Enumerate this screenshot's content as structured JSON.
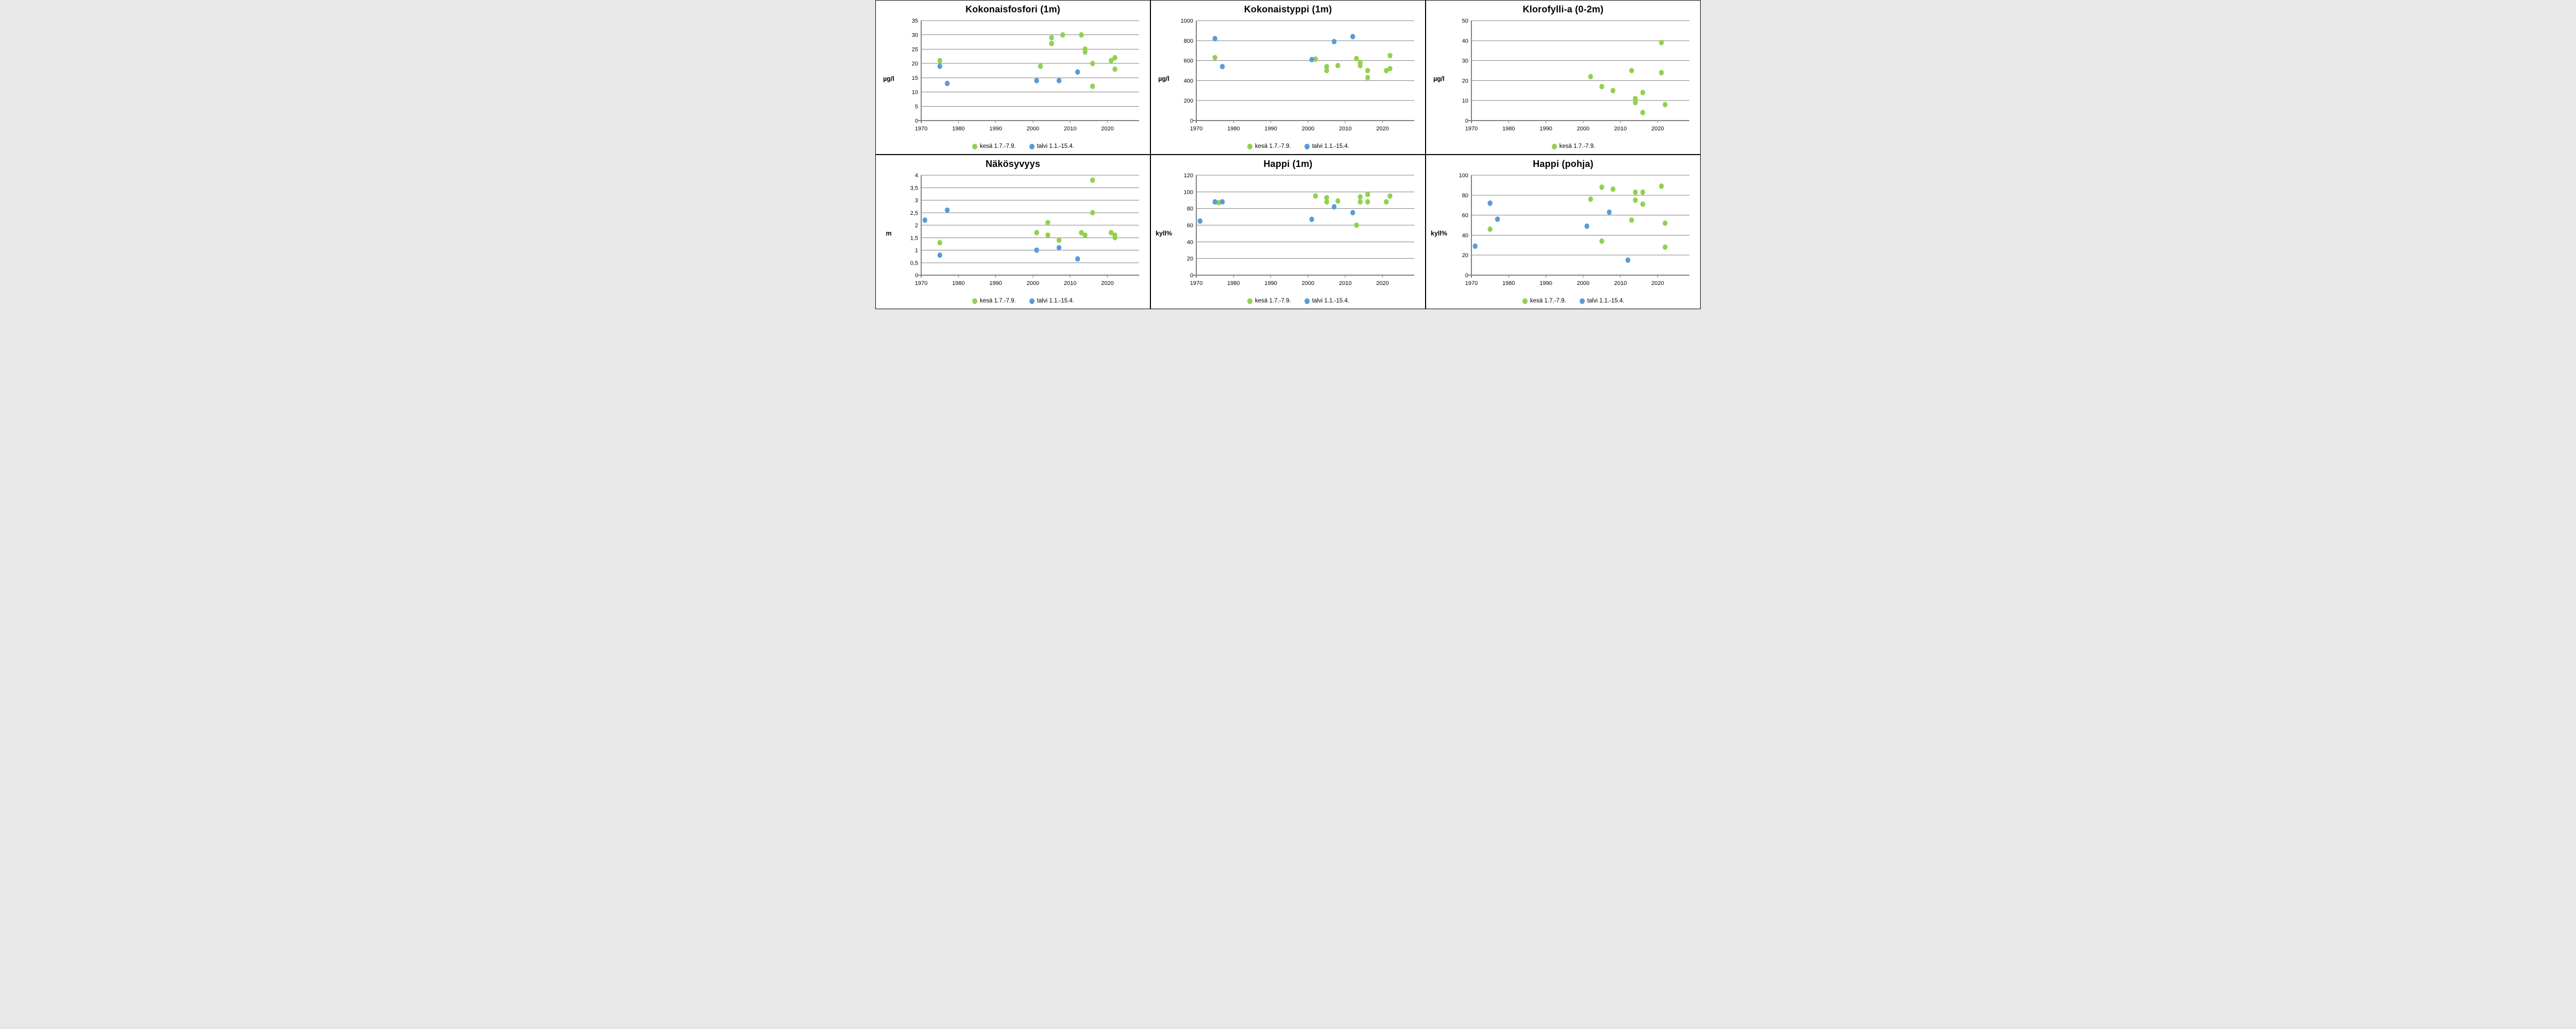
{
  "page": {
    "background": "#ffffff"
  },
  "colors": {
    "kesa": "#92D050",
    "talvi": "#5B9BD5",
    "grid": "#808080",
    "axis": "#808080",
    "text": "#000000",
    "border": "#000000"
  },
  "legend": {
    "kesa_label": "kesä 1.7.-7.9.",
    "talvi_label": "talvi 1.1.-15.4."
  },
  "chart_data": [
    {
      "type": "scatter",
      "title": "Kokonaisfosfori (1m)",
      "ylabel": "µg/l",
      "ylim": [
        0,
        35
      ],
      "yticks": [
        0,
        5,
        10,
        15,
        20,
        25,
        30,
        35
      ],
      "ytick_labels": [
        "0",
        "5",
        "10",
        "15",
        "20",
        "25",
        "30",
        "35"
      ],
      "xlim": [
        1970,
        2028.5
      ],
      "xticks": [
        1970,
        1980,
        1990,
        2000,
        2010,
        2020
      ],
      "xtick_labels": [
        "1970",
        "1980",
        "1990",
        "2000",
        "2010",
        "2020"
      ],
      "grid": true,
      "legend_position": "bottom",
      "series": [
        {
          "id": "kesa",
          "name": "kesä 1.7.-7.9.",
          "color": "#92D050",
          "points": [
            [
              1975,
              21
            ],
            [
              2002,
              19
            ],
            [
              2005,
              29
            ],
            [
              2005,
              27
            ],
            [
              2008,
              30
            ],
            [
              2013,
              30
            ],
            [
              2014,
              25
            ],
            [
              2014,
              24
            ],
            [
              2016,
              20
            ],
            [
              2016,
              12
            ],
            [
              2021,
              21
            ],
            [
              2022,
              22
            ],
            [
              2022,
              18
            ]
          ]
        },
        {
          "id": "talvi",
          "name": "talvi 1.1.-15.4.",
          "color": "#5B9BD5",
          "points": [
            [
              1975,
              19
            ],
            [
              1977,
              13
            ],
            [
              2001,
              14
            ],
            [
              2007,
              14
            ],
            [
              2012,
              17
            ]
          ]
        }
      ]
    },
    {
      "type": "scatter",
      "title": "Kokonaistyppi (1m)",
      "ylabel": "µg/l",
      "ylim": [
        0,
        1000
      ],
      "yticks": [
        0,
        200,
        400,
        600,
        800,
        1000
      ],
      "ytick_labels": [
        "0",
        "200",
        "400",
        "600",
        "800",
        "1000"
      ],
      "xlim": [
        1970,
        2028.5
      ],
      "xticks": [
        1970,
        1980,
        1990,
        2000,
        2010,
        2020
      ],
      "xtick_labels": [
        "1970",
        "1980",
        "1990",
        "2000",
        "2010",
        "2020"
      ],
      "grid": true,
      "legend_position": "bottom",
      "series": [
        {
          "id": "kesa",
          "name": "kesä 1.7.-7.9.",
          "color": "#92D050",
          "points": [
            [
              1975,
              630
            ],
            [
              2002,
              615
            ],
            [
              2005,
              540
            ],
            [
              2005,
              500
            ],
            [
              2008,
              550
            ],
            [
              2013,
              620
            ],
            [
              2014,
              580
            ],
            [
              2014,
              550
            ],
            [
              2016,
              500
            ],
            [
              2016,
              430
            ],
            [
              2021,
              500
            ],
            [
              2022,
              520
            ],
            [
              2022,
              650
            ]
          ]
        },
        {
          "id": "talvi",
          "name": "talvi 1.1.-15.4.",
          "color": "#5B9BD5",
          "points": [
            [
              1975,
              820
            ],
            [
              1977,
              540
            ],
            [
              2001,
              610
            ],
            [
              2007,
              790
            ],
            [
              2012,
              840
            ]
          ]
        }
      ]
    },
    {
      "type": "scatter",
      "title": "Klorofylli-a (0-2m)",
      "ylabel": "µg/l",
      "ylim": [
        0,
        50
      ],
      "yticks": [
        0,
        10,
        20,
        30,
        40,
        50
      ],
      "ytick_labels": [
        "0",
        "10",
        "20",
        "30",
        "40",
        "50"
      ],
      "xlim": [
        1970,
        2028.5
      ],
      "xticks": [
        1970,
        1980,
        1990,
        2000,
        2010,
        2020
      ],
      "xtick_labels": [
        "1970",
        "1980",
        "1990",
        "2000",
        "2010",
        "2020"
      ],
      "grid": true,
      "legend_position": "bottom",
      "series": [
        {
          "id": "kesa",
          "name": "kesä 1.7.-7.9.",
          "color": "#92D050",
          "points": [
            [
              2002,
              22
            ],
            [
              2005,
              17
            ],
            [
              2008,
              15
            ],
            [
              2013,
              25
            ],
            [
              2014,
              11
            ],
            [
              2014,
              9
            ],
            [
              2016,
              14
            ],
            [
              2016,
              4
            ],
            [
              2021,
              39
            ],
            [
              2021,
              24
            ],
            [
              2022,
              8
            ]
          ]
        }
      ]
    },
    {
      "type": "scatter",
      "title": "Näkösyvyys",
      "ylabel": "m",
      "ylim": [
        0,
        4
      ],
      "yticks": [
        0,
        0.5,
        1,
        1.5,
        2,
        2.5,
        3,
        3.5,
        4
      ],
      "ytick_labels": [
        "0",
        "0,5",
        "1",
        "1,5",
        "2",
        "2,5",
        "3",
        "3,5",
        "4"
      ],
      "xlim": [
        1970,
        2028.5
      ],
      "xticks": [
        1970,
        1980,
        1990,
        2000,
        2010,
        2020
      ],
      "xtick_labels": [
        "1970",
        "1980",
        "1990",
        "2000",
        "2010",
        "2020"
      ],
      "grid": true,
      "legend_position": "bottom",
      "series": [
        {
          "id": "kesa",
          "name": "kesä 1.7.-7.9.",
          "color": "#92D050",
          "points": [
            [
              1975,
              1.3
            ],
            [
              2001,
              1.7
            ],
            [
              2004,
              2.1
            ],
            [
              2004,
              1.6
            ],
            [
              2007,
              1.4
            ],
            [
              2013,
              1.7
            ],
            [
              2014,
              1.6
            ],
            [
              2016,
              3.8
            ],
            [
              2016,
              2.5
            ],
            [
              2021,
              1.7
            ],
            [
              2022,
              1.6
            ],
            [
              2022,
              1.5
            ]
          ]
        },
        {
          "id": "talvi",
          "name": "talvi 1.1.-15.4.",
          "color": "#5B9BD5",
          "points": [
            [
              1971,
              2.2
            ],
            [
              1975,
              0.8
            ],
            [
              1977,
              2.6
            ],
            [
              2001,
              1.0
            ],
            [
              2007,
              1.1
            ],
            [
              2012,
              0.65
            ]
          ]
        }
      ]
    },
    {
      "type": "scatter",
      "title": "Happi (1m)",
      "ylabel": "kyll%",
      "ylim": [
        0,
        120
      ],
      "yticks": [
        0,
        20,
        40,
        60,
        80,
        100,
        120
      ],
      "ytick_labels": [
        "0",
        "20",
        "40",
        "60",
        "80",
        "100",
        "120"
      ],
      "xlim": [
        1970,
        2028.5
      ],
      "xticks": [
        1970,
        1980,
        1990,
        2000,
        2010,
        2020
      ],
      "xtick_labels": [
        "1970",
        "1980",
        "1990",
        "2000",
        "2010",
        "2020"
      ],
      "grid": true,
      "legend_position": "bottom",
      "series": [
        {
          "id": "kesa",
          "name": "kesä 1.7.-7.9.",
          "color": "#92D050",
          "points": [
            [
              1976,
              87
            ],
            [
              2002,
              95
            ],
            [
              2005,
              93
            ],
            [
              2005,
              88
            ],
            [
              2008,
              89
            ],
            [
              2013,
              60
            ],
            [
              2014,
              94
            ],
            [
              2014,
              88
            ],
            [
              2016,
              97
            ],
            [
              2016,
              88
            ],
            [
              2021,
              88
            ],
            [
              2022,
              95
            ]
          ]
        },
        {
          "id": "talvi",
          "name": "talvi 1.1.-15.4.",
          "color": "#5B9BD5",
          "points": [
            [
              1971,
              65
            ],
            [
              1975,
              88
            ],
            [
              1977,
              88
            ],
            [
              2001,
              67
            ],
            [
              2007,
              82
            ],
            [
              2012,
              75
            ]
          ]
        }
      ]
    },
    {
      "type": "scatter",
      "title": "Happi (pohja)",
      "ylabel": "kyll%",
      "ylim": [
        0,
        100
      ],
      "yticks": [
        0,
        20,
        40,
        60,
        80,
        100
      ],
      "ytick_labels": [
        "0",
        "20",
        "40",
        "60",
        "80",
        "100"
      ],
      "xlim": [
        1970,
        2028.5
      ],
      "xticks": [
        1970,
        1980,
        1990,
        2000,
        2010,
        2020
      ],
      "xtick_labels": [
        "1970",
        "1980",
        "1990",
        "2000",
        "2010",
        "2020"
      ],
      "grid": true,
      "legend_position": "bottom",
      "series": [
        {
          "id": "kesa",
          "name": "kesä 1.7.-7.9.",
          "color": "#92D050",
          "points": [
            [
              1975,
              46
            ],
            [
              2002,
              76
            ],
            [
              2005,
              88
            ],
            [
              2005,
              34
            ],
            [
              2008,
              86
            ],
            [
              2013,
              55
            ],
            [
              2014,
              83
            ],
            [
              2014,
              75
            ],
            [
              2016,
              83
            ],
            [
              2016,
              71
            ],
            [
              2021,
              89
            ],
            [
              2022,
              52
            ],
            [
              2022,
              28
            ]
          ]
        },
        {
          "id": "talvi",
          "name": "talvi 1.1.-15.4.",
          "color": "#5B9BD5",
          "points": [
            [
              1971,
              29
            ],
            [
              1975,
              72
            ],
            [
              1977,
              56
            ],
            [
              2001,
              49
            ],
            [
              2007,
              63
            ],
            [
              2012,
              15
            ]
          ]
        }
      ]
    }
  ]
}
